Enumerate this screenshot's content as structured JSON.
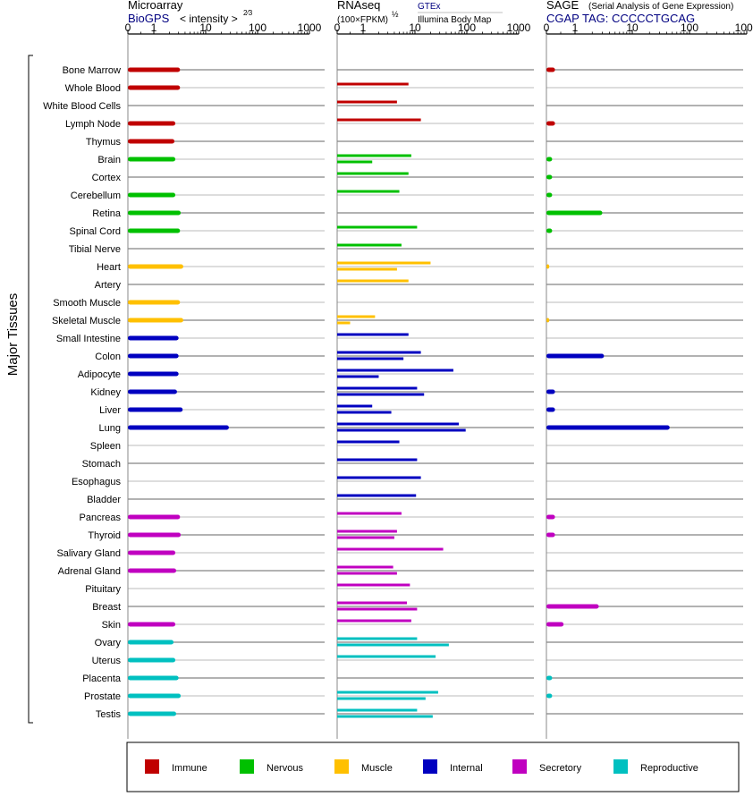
{
  "panels": {
    "microarray": {
      "title": "Microarray",
      "source": "BioGPS",
      "unit_prefix": "< intensity >",
      "unit_exponent": "2⁄3",
      "tick_labels": [
        "0",
        "1",
        "10",
        "100",
        "1000"
      ]
    },
    "rnaseq": {
      "title": "RNAseq",
      "unit_prefix": "(100×FPKM)",
      "unit_exponent": "½",
      "source_top": "GTEx",
      "source_bottom": "Illumina Body Map",
      "tick_labels": [
        "0",
        "1",
        "10",
        "100",
        "1000"
      ]
    },
    "sage": {
      "title": "SAGE",
      "subtitle": "(Serial Analysis of Gene Expression)",
      "tag_line": "CGAP  TAG: CCCCCTGCAG",
      "tick_labels": [
        "0",
        "1",
        "10",
        "100",
        "1000"
      ]
    }
  },
  "y_axis_label": "Major Tissues",
  "legend": [
    {
      "key": "immune",
      "label": "Immune",
      "color": "#c00000"
    },
    {
      "key": "nervous",
      "label": "Nervous",
      "color": "#00c000"
    },
    {
      "key": "muscle",
      "label": "Muscle",
      "color": "#ffc000"
    },
    {
      "key": "internal",
      "label": "Internal",
      "color": "#0000c0"
    },
    {
      "key": "secretory",
      "label": "Secretory",
      "color": "#c000c0"
    },
    {
      "key": "reproductive",
      "label": "Reproductive",
      "color": "#00c0c0"
    }
  ],
  "chart_data": {
    "type": "bar",
    "scale": "log (0, 1, 10, 100, 1000)",
    "xlim": [
      0,
      1000
    ],
    "grid": true,
    "legend_placement": "bottom",
    "categories": [
      "Bone Marrow",
      "Whole Blood",
      "White Blood Cells",
      "Lymph Node",
      "Thymus",
      "Brain",
      "Cortex",
      "Cerebellum",
      "Retina",
      "Spinal Cord",
      "Tibial Nerve",
      "Heart",
      "Artery",
      "Smooth Muscle",
      "Skeletal Muscle",
      "Small Intestine",
      "Colon",
      "Adipocyte",
      "Kidney",
      "Liver",
      "Lung",
      "Spleen",
      "Stomach",
      "Esophagus",
      "Bladder",
      "Pancreas",
      "Thyroid",
      "Salivary Gland",
      "Adrenal Gland",
      "Pituitary",
      "Breast",
      "Skin",
      "Ovary",
      "Uterus",
      "Placenta",
      "Prostate",
      "Testis"
    ],
    "groups": [
      "immune",
      "immune",
      "immune",
      "immune",
      "immune",
      "nervous",
      "nervous",
      "nervous",
      "nervous",
      "nervous",
      "nervous",
      "muscle",
      "muscle",
      "muscle",
      "muscle",
      "internal",
      "internal",
      "internal",
      "internal",
      "internal",
      "internal",
      "internal",
      "internal",
      "internal",
      "internal",
      "secretory",
      "secretory",
      "secretory",
      "secretory",
      "secretory",
      "secretory",
      "secretory",
      "reproductive",
      "reproductive",
      "reproductive",
      "reproductive",
      "reproductive"
    ],
    "series": [
      {
        "name": "BioGPS",
        "panel": "microarray",
        "values": [
          3.2,
          3.2,
          null,
          2.6,
          2.5,
          2.6,
          null,
          2.6,
          3.3,
          3.2,
          null,
          3.7,
          null,
          3.2,
          3.7,
          3.0,
          3.0,
          3.0,
          2.8,
          3.6,
          28,
          null,
          null,
          null,
          null,
          3.2,
          3.3,
          2.6,
          2.7,
          null,
          null,
          2.6,
          2.4,
          2.6,
          3.0,
          3.3,
          2.7
        ]
      },
      {
        "name": "GTEx",
        "panel": "rnaseq",
        "values": [
          null,
          7.5,
          4.5,
          13,
          null,
          8.5,
          7.5,
          5.0,
          null,
          11,
          5.5,
          20,
          7.5,
          null,
          1.7,
          7.5,
          13,
          55,
          11,
          1.5,
          70,
          5.0,
          11,
          13,
          10.5,
          5.5,
          4.5,
          35,
          3.8,
          8.0,
          7.0,
          8.5,
          11,
          25,
          null,
          28,
          11
        ]
      },
      {
        "name": "Illumina Body Map",
        "panel": "rnaseq",
        "values": [
          null,
          null,
          null,
          null,
          null,
          1.5,
          null,
          null,
          null,
          null,
          null,
          4.5,
          null,
          null,
          0.5,
          null,
          6.0,
          2.0,
          15,
          3.5,
          95,
          null,
          null,
          null,
          null,
          null,
          4.0,
          null,
          4.5,
          null,
          11,
          null,
          45,
          null,
          null,
          16,
          22
        ]
      },
      {
        "name": "SAGE",
        "panel": "sage",
        "values": [
          0.3,
          null,
          null,
          0.3,
          null,
          0.2,
          0.2,
          0.2,
          3.0,
          0.2,
          null,
          0.1,
          null,
          null,
          0.1,
          null,
          3.2,
          null,
          0.3,
          0.3,
          45,
          null,
          null,
          null,
          null,
          0.3,
          0.3,
          null,
          null,
          null,
          2.6,
          0.6,
          null,
          null,
          0.2,
          0.2,
          null
        ]
      }
    ]
  }
}
